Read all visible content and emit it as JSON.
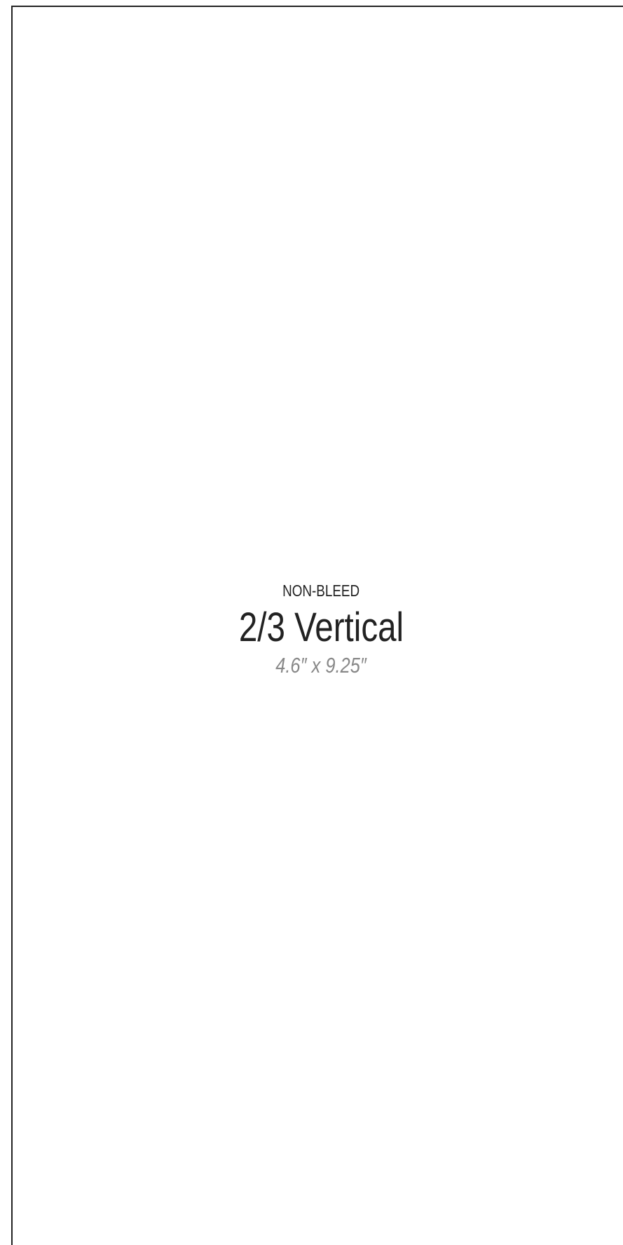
{
  "label": "NON-BLEED",
  "title": "2/3 Vertical",
  "size": "4.6″ x 9.25″"
}
